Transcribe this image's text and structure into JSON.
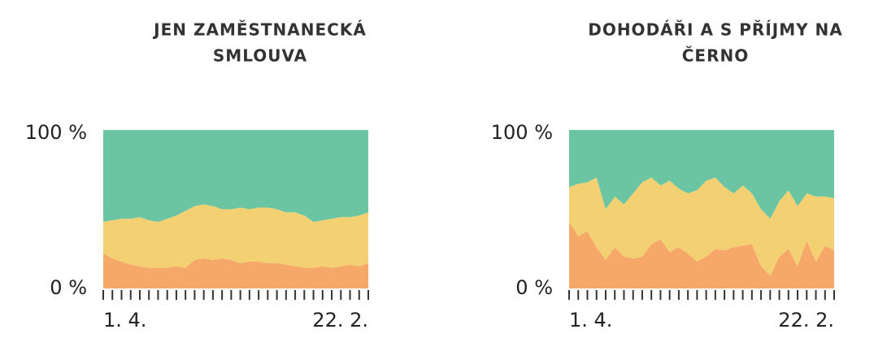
{
  "chart_data": [
    {
      "type": "stacked_area",
      "title": [
        "JEN ZAMĚSTNANECKÁ",
        "SMLOUVA"
      ],
      "categories": [
        "1. 4.",
        null,
        null,
        null,
        null,
        null,
        null,
        null,
        null,
        null,
        null,
        null,
        null,
        null,
        null,
        null,
        null,
        null,
        null,
        null,
        null,
        null,
        null,
        null,
        null,
        null,
        null,
        null,
        null,
        "22. 2."
      ],
      "series": [
        {
          "color": "#f6a868",
          "values": [
            22,
            19,
            17,
            15,
            14,
            13,
            13,
            13,
            14,
            13,
            18,
            19,
            18,
            19,
            18,
            16,
            17,
            17,
            16,
            16,
            15,
            14,
            13,
            13,
            14,
            13,
            14,
            15,
            14,
            16
          ]
        },
        {
          "color": "#f3d173",
          "values": [
            20,
            24,
            27,
            29,
            31,
            30,
            29,
            31,
            32,
            36,
            34,
            34,
            34,
            31,
            32,
            35,
            33,
            34,
            35,
            34,
            33,
            34,
            33,
            29,
            29,
            31,
            31,
            30,
            32,
            32
          ]
        },
        {
          "color": "#6cc5a2",
          "values": [
            58,
            57,
            56,
            56,
            55,
            57,
            58,
            56,
            54,
            51,
            48,
            47,
            48,
            50,
            50,
            49,
            50,
            49,
            49,
            50,
            52,
            52,
            54,
            58,
            57,
            56,
            55,
            55,
            54,
            52
          ]
        }
      ],
      "ylim": [
        0,
        100
      ],
      "yticks": [
        {
          "value": 0,
          "label": "0 %"
        },
        {
          "value": 100,
          "label": "100 %"
        }
      ]
    },
    {
      "type": "stacked_area",
      "title": [
        "DOHODÁŘI A S PŘÍJMY NA",
        "ČERNO"
      ],
      "categories": [
        "1. 4.",
        null,
        null,
        null,
        null,
        null,
        null,
        null,
        null,
        null,
        null,
        null,
        null,
        null,
        null,
        null,
        null,
        null,
        null,
        null,
        null,
        null,
        null,
        null,
        null,
        null,
        null,
        null,
        null,
        "22. 2."
      ],
      "series": [
        {
          "color": "#f6a868",
          "values": [
            42,
            33,
            36,
            26,
            18,
            26,
            20,
            19,
            20,
            28,
            31,
            23,
            26,
            22,
            17,
            20,
            25,
            24,
            26,
            27,
            28,
            14,
            8,
            20,
            25,
            14,
            30,
            17,
            27,
            24
          ]
        },
        {
          "color": "#f3d173",
          "values": [
            22,
            33,
            31,
            44,
            32,
            32,
            33,
            41,
            47,
            42,
            34,
            45,
            37,
            38,
            45,
            48,
            45,
            40,
            34,
            38,
            32,
            36,
            36,
            35,
            37,
            38,
            30,
            41,
            31,
            33
          ]
        },
        {
          "color": "#6cc5a2",
          "values": [
            36,
            34,
            33,
            30,
            50,
            42,
            47,
            40,
            33,
            30,
            35,
            32,
            37,
            40,
            38,
            32,
            30,
            36,
            40,
            35,
            40,
            50,
            56,
            45,
            38,
            48,
            40,
            42,
            42,
            43
          ]
        }
      ],
      "ylim": [
        0,
        100
      ],
      "yticks": [
        {
          "value": 0,
          "label": "0 %"
        },
        {
          "value": 100,
          "label": "100 %"
        }
      ]
    }
  ]
}
